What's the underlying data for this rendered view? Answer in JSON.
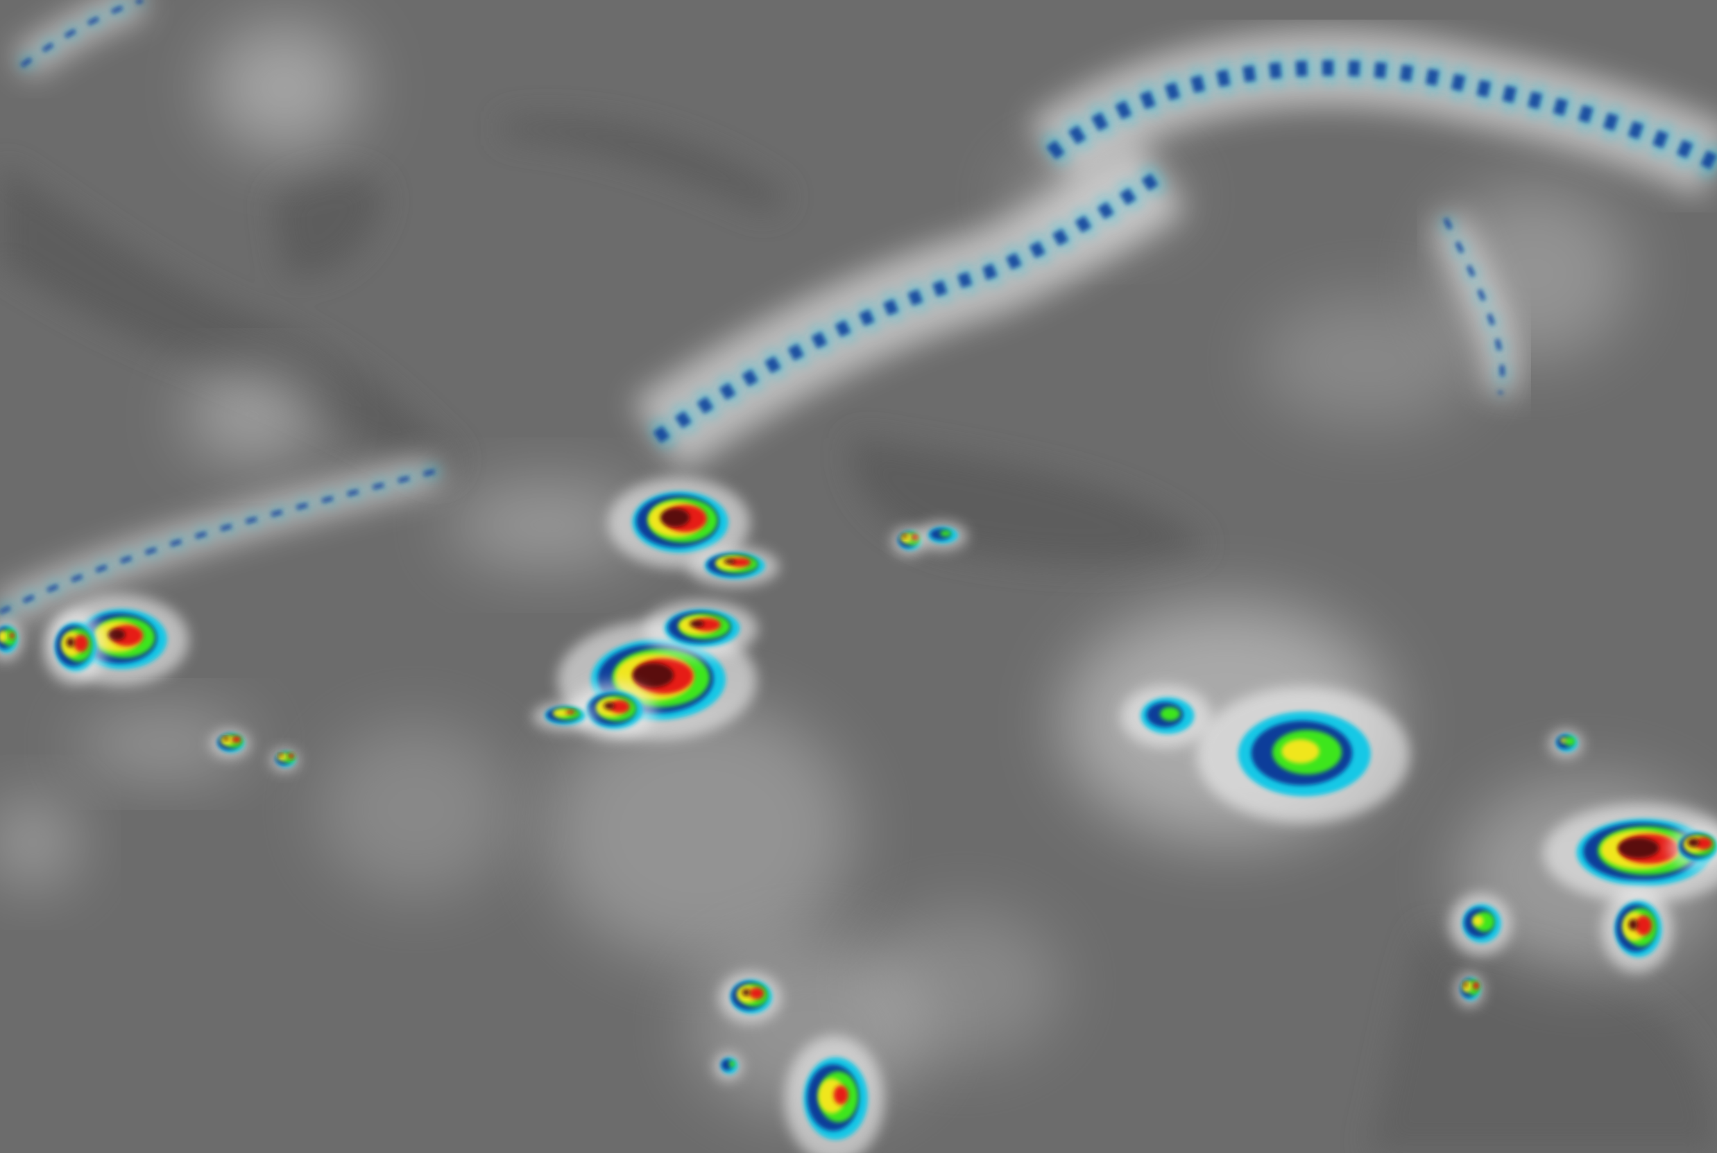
{
  "image": {
    "kind": "enhanced infrared satellite imagery",
    "colors": {
      "background_gray": "#6c6c6c",
      "land_gray": "#5e5e5e",
      "cloud_white": "#f2f2f2",
      "cold_cyan": "#19c8e6",
      "cold_blue": "#0a3c9a",
      "green": "#3ee61e",
      "yellow": "#f0e61e",
      "red": "#e61e14",
      "dark_red": "#5a0a0a"
    }
  }
}
